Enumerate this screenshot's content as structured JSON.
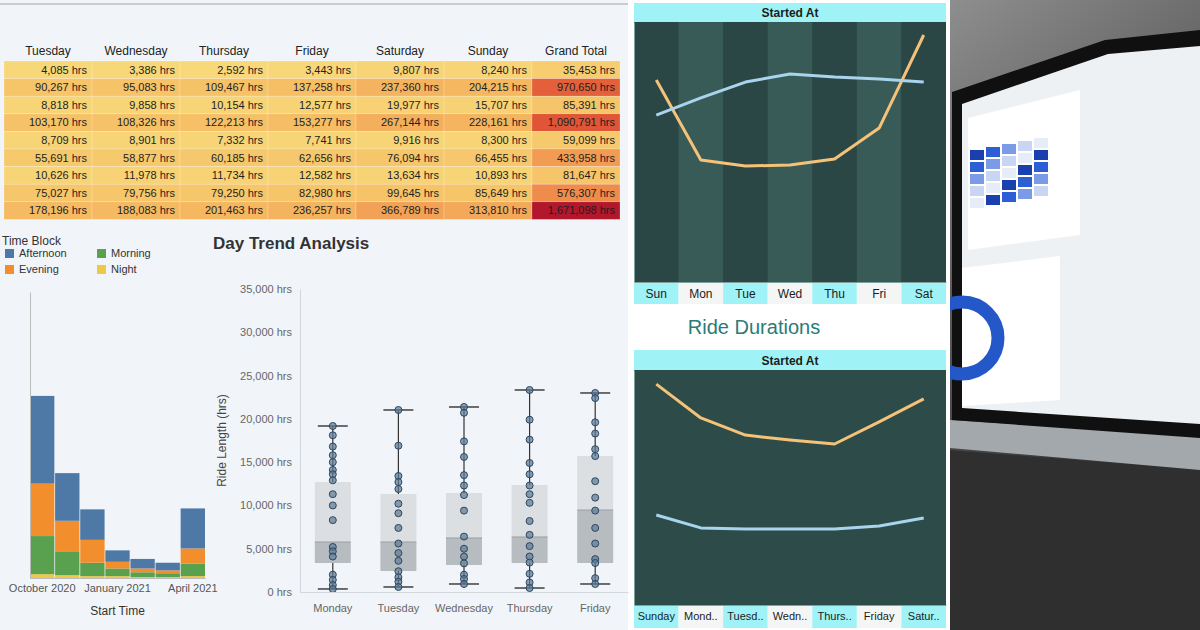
{
  "chart_data": [
    {
      "type": "heatmap",
      "columns": [
        "Tuesday",
        "Wednesday",
        "Thursday",
        "Friday",
        "Saturday",
        "Sunday",
        "Grand Total"
      ],
      "values": [
        [
          4085,
          3386,
          2592,
          3443,
          9807,
          8240,
          35453
        ],
        [
          90267,
          95083,
          109467,
          137258,
          237360,
          204215,
          970650
        ],
        [
          8818,
          9858,
          10154,
          12577,
          19977,
          15707,
          85391
        ],
        [
          103170,
          108326,
          122213,
          153277,
          267144,
          228161,
          1090791
        ],
        [
          8709,
          8901,
          7332,
          7741,
          9916,
          8300,
          59099
        ],
        [
          55691,
          58877,
          60185,
          62656,
          76094,
          66455,
          433958
        ],
        [
          10626,
          11978,
          11734,
          12582,
          13634,
          10893,
          81647
        ],
        [
          75027,
          79756,
          79250,
          82980,
          99645,
          85649,
          576307
        ],
        [
          178196,
          188083,
          201463,
          236257,
          366789,
          313810,
          1671098
        ]
      ],
      "value_labels": [
        [
          "4,085 hrs",
          "3,386 hrs",
          "2,592 hrs",
          "3,443 hrs",
          "9,807 hrs",
          "8,240 hrs",
          "35,453 hrs"
        ],
        [
          "90,267 hrs",
          "95,083 hrs",
          "109,467 hrs",
          "137,258 hrs",
          "237,360 hrs",
          "204,215 hrs",
          "970,650 hrs"
        ],
        [
          "8,818 hrs",
          "9,858 hrs",
          "10,154 hrs",
          "12,577 hrs",
          "19,977 hrs",
          "15,707 hrs",
          "85,391 hrs"
        ],
        [
          "103,170 hrs",
          "108,326 hrs",
          "122,213 hrs",
          "153,277 hrs",
          "267,144 hrs",
          "228,161 hrs",
          "1,090,791 hrs"
        ],
        [
          "8,709 hrs",
          "8,901 hrs",
          "7,332 hrs",
          "7,741 hrs",
          "9,916 hrs",
          "8,300 hrs",
          "59,099 hrs"
        ],
        [
          "55,691 hrs",
          "58,877 hrs",
          "60,185 hrs",
          "62,656 hrs",
          "76,094 hrs",
          "66,455 hrs",
          "433,958 hrs"
        ],
        [
          "10,626 hrs",
          "11,978 hrs",
          "11,734 hrs",
          "12,582 hrs",
          "13,634 hrs",
          "10,893 hrs",
          "81,647 hrs"
        ],
        [
          "75,027 hrs",
          "79,756 hrs",
          "79,250 hrs",
          "82,980 hrs",
          "99,645 hrs",
          "85,649 hrs",
          "576,307 hrs"
        ],
        [
          "178,196 hrs",
          "188,083 hrs",
          "201,463 hrs",
          "236,257 hrs",
          "366,789 hrs",
          "313,810 hrs",
          "1,671,098 hrs"
        ]
      ]
    },
    {
      "type": "bar",
      "stacked": true,
      "x_label": "Start Time",
      "legend_title": "Time Block",
      "legend": "top-left",
      "categories": [
        "October 2020",
        null,
        null,
        "January 2021",
        null,
        null,
        "April 2021"
      ],
      "series": [
        {
          "name": "Afternoon",
          "color": "#4e79a7",
          "values": [
            92,
            50,
            32,
            12,
            10,
            8,
            42
          ]
        },
        {
          "name": "Evening",
          "color": "#f28e2b",
          "values": [
            55,
            32,
            24,
            7,
            4,
            3,
            16
          ]
        },
        {
          "name": "Morning",
          "color": "#59a14f",
          "values": [
            40,
            25,
            14,
            8,
            5,
            4,
            13
          ]
        },
        {
          "name": "Night",
          "color": "#edc948",
          "values": [
            4,
            3,
            2,
            2,
            1,
            1,
            2
          ]
        }
      ],
      "ylim": [
        0,
        300
      ],
      "tick_labels": "x"
    },
    {
      "type": "box",
      "title": "Day Trend Analysis",
      "y_label": "Ride Length (hrs)",
      "categories": [
        "Monday",
        "Tuesday",
        "Wednesday",
        "Thursday",
        "Friday"
      ],
      "boxes": [
        {
          "min": 350,
          "q1": 3350,
          "median": 5775,
          "q3": 12700,
          "max": 19175
        },
        {
          "min": 580,
          "q1": 2425,
          "median": 5775,
          "q3": 11320,
          "max": 21025
        },
        {
          "min": 925,
          "q1": 3120,
          "median": 6240,
          "q3": 11435,
          "max": 21370
        },
        {
          "min": 460,
          "q1": 3350,
          "median": 6355,
          "q3": 12360,
          "max": 23335
        },
        {
          "min": 925,
          "q1": 3350,
          "median": 9470,
          "q3": 15710,
          "max": 22990
        }
      ],
      "points": [
        [
          19175,
          18100,
          16800,
          15800,
          15000,
          14100,
          13600,
          12900,
          11300,
          10000,
          8300,
          5200,
          4700,
          4100,
          2000,
          1400,
          800,
          350
        ],
        [
          21025,
          16900,
          13400,
          12700,
          11900,
          10200,
          9100,
          7400,
          5600,
          4500,
          3600,
          2400,
          1700,
          1200,
          580
        ],
        [
          21370,
          20700,
          17400,
          15600,
          13500,
          12300,
          11200,
          9400,
          6400,
          5000,
          4100,
          3300,
          2000,
          1500,
          925
        ],
        [
          23335,
          19900,
          17600,
          14900,
          13600,
          12300,
          11300,
          10300,
          8200,
          6600,
          5300,
          4100,
          3400,
          2100,
          1100,
          460
        ],
        [
          22990,
          22400,
          19600,
          18300,
          16500,
          15700,
          12800,
          10900,
          9400,
          7400,
          5600,
          3800,
          3350,
          1600,
          925
        ]
      ],
      "ylim": [
        0,
        35000
      ],
      "yticks": [
        {
          "value": 0,
          "label": "0 hrs"
        },
        {
          "value": 5000,
          "label": "5,000 hrs"
        },
        {
          "value": 10000,
          "label": "10,000 hrs"
        },
        {
          "value": 15000,
          "label": "15,000 hrs"
        },
        {
          "value": 20000,
          "label": "20,000 hrs"
        },
        {
          "value": 25000,
          "label": "25,000 hrs"
        },
        {
          "value": 30000,
          "label": "30,000 hrs"
        },
        {
          "value": 35000,
          "label": "35,000 hrs"
        }
      ]
    },
    {
      "type": "line",
      "header": "Started At",
      "categories": [
        "Sun",
        "Mon",
        "Tue",
        "Wed",
        "Thu",
        "Fri",
        "Sat"
      ],
      "series": [
        {
          "color": "#f5c27a",
          "values": [
            77.7,
            46.9,
            44.6,
            45.0,
            47.3,
            59.2,
            95.0
          ]
        },
        {
          "color": "#a9d4ee",
          "values": [
            64.2,
            70.8,
            76.9,
            80.0,
            78.8,
            78.1,
            76.9
          ]
        }
      ],
      "ylim": [
        0,
        100
      ],
      "tick_labels": "x"
    },
    {
      "type": "line",
      "title": "Ride Durations",
      "header": "Started At",
      "categories": [
        "Sunday",
        "Mond..",
        "Tuesd..",
        "Wedn..",
        "Thurs..",
        "Friday",
        "Satur.."
      ],
      "series": [
        {
          "color": "#f5c27a",
          "values": [
            94.0,
            79.6,
            72.3,
            70.2,
            68.5,
            77.9,
            87.7
          ]
        },
        {
          "color": "#a9d4ee",
          "values": [
            38.3,
            32.8,
            32.3,
            32.3,
            32.3,
            33.6,
            37.0
          ]
        }
      ],
      "ylim": [
        0,
        100
      ],
      "tick_labels": "x"
    }
  ]
}
